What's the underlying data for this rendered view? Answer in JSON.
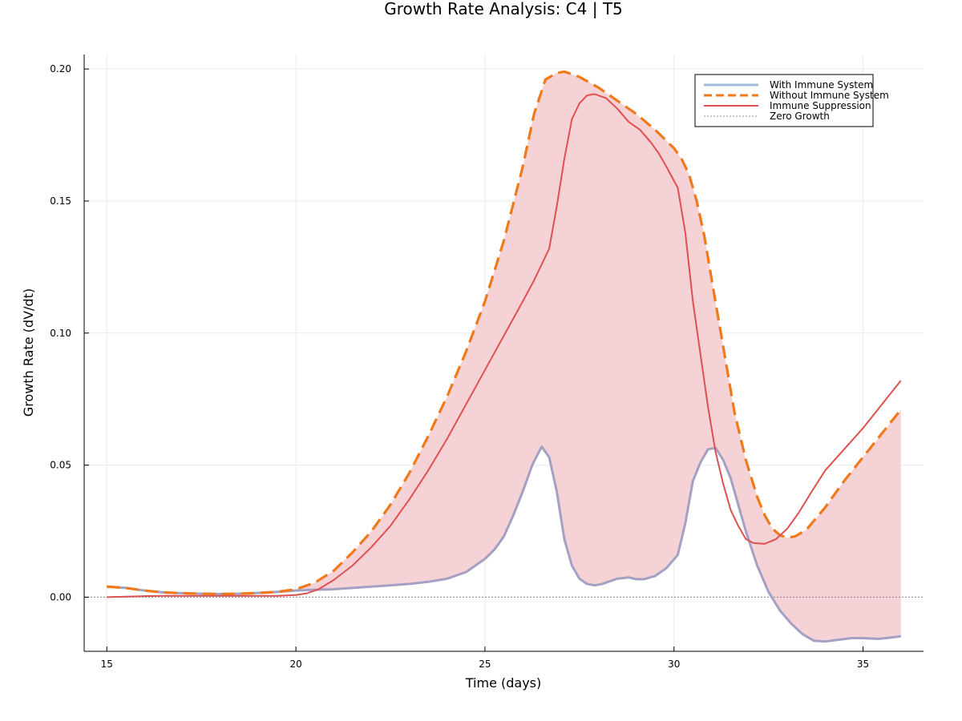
{
  "chart_data": {
    "type": "line",
    "title": "Growth Rate Analysis: C4 | T5",
    "xlabel": "Time (days)",
    "ylabel": "Growth Rate (dV/dt)",
    "xlim": [
      14.4,
      36.6
    ],
    "ylim": [
      -0.0205,
      0.2055
    ],
    "xticks": [
      15,
      20,
      25,
      30,
      35
    ],
    "xtick_labels": [
      "15",
      "20",
      "25",
      "30",
      "35"
    ],
    "yticks": [
      0.0,
      0.05,
      0.1,
      0.15,
      0.2
    ],
    "ytick_labels": [
      "0.00",
      "0.05",
      "0.10",
      "0.15",
      "0.20"
    ],
    "grid": true,
    "legend_position": "top-right",
    "colors": {
      "with_immune": "#a0bcdc",
      "with_immune_overlap": "#a4a0c4",
      "without_immune": "#f07a1a",
      "suppression": "#df5050",
      "fill": "#f5d2d5",
      "zero": "#8c8c8c"
    },
    "fill_between": {
      "upper": "Without Immune System",
      "lower": "With Immune System"
    },
    "series": [
      {
        "name": "With Immune System",
        "style": "solid",
        "x": [
          15,
          15.5,
          16,
          16.5,
          17,
          17.5,
          18,
          18.5,
          19,
          19.5,
          20,
          20.5,
          21,
          21.5,
          22,
          22.5,
          23,
          23.5,
          24,
          24.5,
          25,
          25.25,
          25.5,
          25.75,
          26,
          26.25,
          26.5,
          26.7,
          26.9,
          27.1,
          27.3,
          27.5,
          27.7,
          27.9,
          28.1,
          28.3,
          28.5,
          28.8,
          29,
          29.2,
          29.5,
          29.8,
          30.1,
          30.3,
          30.5,
          30.7,
          30.9,
          31.1,
          31.3,
          31.5,
          31.7,
          31.9,
          32.2,
          32.5,
          32.8,
          33.1,
          33.4,
          33.7,
          34.0,
          34.3,
          34.7,
          35.0,
          35.4,
          35.8,
          36
        ],
        "y": [
          0.004,
          0.0035,
          0.0025,
          0.0018,
          0.0015,
          0.0013,
          0.0012,
          0.0013,
          0.0016,
          0.002,
          0.0025,
          0.0028,
          0.003,
          0.0035,
          0.004,
          0.0045,
          0.005,
          0.0058,
          0.007,
          0.0095,
          0.0145,
          0.018,
          0.023,
          0.031,
          0.04,
          0.05,
          0.057,
          0.053,
          0.04,
          0.022,
          0.012,
          0.007,
          0.005,
          0.0045,
          0.005,
          0.006,
          0.007,
          0.0075,
          0.0068,
          0.0068,
          0.008,
          0.011,
          0.016,
          0.028,
          0.044,
          0.051,
          0.056,
          0.0565,
          0.052,
          0.045,
          0.035,
          0.025,
          0.012,
          0.002,
          -0.005,
          -0.01,
          -0.014,
          -0.0165,
          -0.0168,
          -0.0162,
          -0.0155,
          -0.0155,
          -0.0158,
          -0.0152,
          -0.0148
        ]
      },
      {
        "name": "Without Immune System",
        "style": "dashed",
        "x": [
          15,
          15.5,
          16,
          16.5,
          17,
          17.5,
          18,
          18.5,
          19,
          19.5,
          20,
          20.5,
          21,
          21.5,
          22,
          22.5,
          23,
          23.5,
          24,
          24.5,
          25,
          25.5,
          26,
          26.3,
          26.6,
          26.9,
          27.1,
          27.5,
          28,
          28.5,
          29,
          29.5,
          30,
          30.2,
          30.4,
          30.6,
          30.8,
          31.0,
          31.3,
          31.6,
          31.9,
          32.2,
          32.4,
          32.6,
          32.8,
          33.0,
          33.2,
          33.5,
          34,
          34.5,
          35,
          35.5,
          36
        ],
        "y": [
          0.004,
          0.0035,
          0.0025,
          0.0018,
          0.0015,
          0.0013,
          0.0012,
          0.0013,
          0.0016,
          0.002,
          0.003,
          0.0055,
          0.01,
          0.017,
          0.025,
          0.035,
          0.047,
          0.061,
          0.076,
          0.093,
          0.112,
          0.135,
          0.163,
          0.183,
          0.196,
          0.1985,
          0.199,
          0.197,
          0.193,
          0.188,
          0.183,
          0.177,
          0.17,
          0.166,
          0.16,
          0.15,
          0.137,
          0.12,
          0.095,
          0.07,
          0.052,
          0.038,
          0.031,
          0.026,
          0.0235,
          0.0225,
          0.023,
          0.0255,
          0.034,
          0.044,
          0.053,
          0.062,
          0.071
        ]
      },
      {
        "name": "Immune Suppression",
        "style": "solid",
        "x": [
          15,
          15.5,
          16,
          16.5,
          17,
          17.5,
          18,
          18.5,
          19,
          19.5,
          20,
          20.3,
          20.6,
          21,
          21.5,
          22,
          22.5,
          23,
          23.5,
          24,
          24.5,
          25,
          25.5,
          26,
          26.3,
          26.5,
          26.7,
          26.9,
          27.1,
          27.3,
          27.5,
          27.7,
          27.9,
          28.2,
          28.5,
          28.8,
          29.1,
          29.4,
          29.6,
          29.8,
          30.1,
          30.3,
          30.5,
          30.7,
          30.9,
          31.1,
          31.3,
          31.5,
          31.7,
          31.9,
          32.1,
          32.4,
          32.7,
          33.0,
          33.3,
          33.6,
          34,
          34.5,
          35,
          35.5,
          36
        ],
        "y": [
          0.0,
          0.0002,
          0.0004,
          0.0005,
          0.0005,
          0.0005,
          0.0005,
          0.0005,
          0.0005,
          0.0005,
          0.0008,
          0.0015,
          0.003,
          0.0065,
          0.012,
          0.019,
          0.027,
          0.037,
          0.048,
          0.06,
          0.073,
          0.086,
          0.099,
          0.112,
          0.12,
          0.126,
          0.132,
          0.148,
          0.166,
          0.181,
          0.187,
          0.19,
          0.1905,
          0.189,
          0.185,
          0.18,
          0.177,
          0.172,
          0.168,
          0.163,
          0.155,
          0.138,
          0.112,
          0.092,
          0.072,
          0.055,
          0.043,
          0.033,
          0.027,
          0.022,
          0.0205,
          0.0202,
          0.022,
          0.026,
          0.032,
          0.039,
          0.048,
          0.056,
          0.064,
          0.073,
          0.082
        ]
      },
      {
        "name": "Zero Growth",
        "style": "dotted",
        "y_constant": 0.0
      }
    ]
  }
}
